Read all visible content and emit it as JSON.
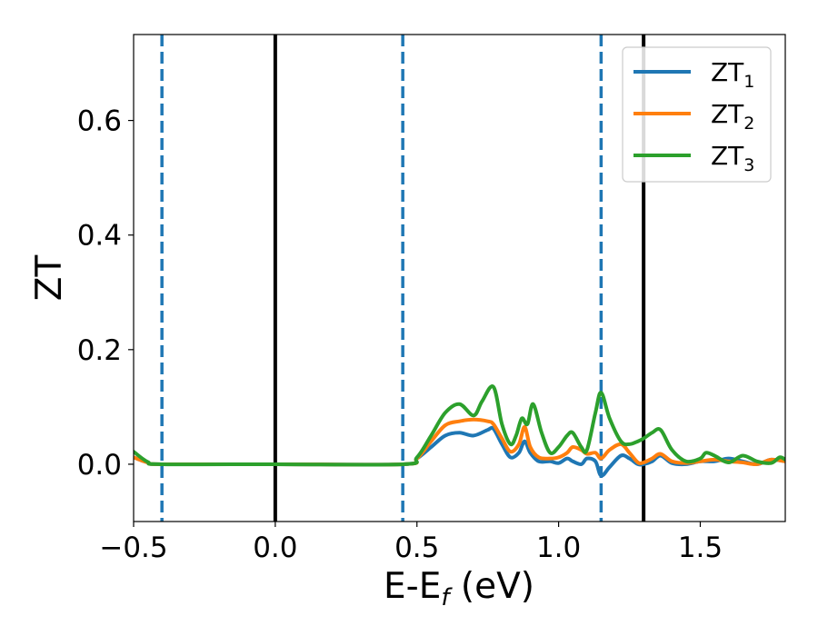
{
  "chart_data": {
    "type": "line",
    "xlabel": "E-E",
    "xlabel_sub": "f",
    "xlabel_unit": " (eV)",
    "ylabel": "ZT",
    "xlim": [
      -0.5,
      1.8
    ],
    "ylim": [
      -0.1,
      0.75
    ],
    "xticks": [
      -0.5,
      0.0,
      0.5,
      1.0,
      1.5
    ],
    "xtick_labels": [
      "−0.5",
      "0.0",
      "0.5",
      "1.0",
      "1.5"
    ],
    "yticks": [
      0.0,
      0.2,
      0.4,
      0.6
    ],
    "ytick_labels": [
      "0.0",
      "0.2",
      "0.4",
      "0.6"
    ],
    "grid": false,
    "legend_position": "top-right",
    "vertical_lines": [
      {
        "x": -0.4,
        "style": "dashed",
        "color": "#1f77b4"
      },
      {
        "x": 0.0,
        "style": "solid",
        "color": "#000000"
      },
      {
        "x": 0.45,
        "style": "dashed",
        "color": "#1f77b4"
      },
      {
        "x": 1.15,
        "style": "dashed",
        "color": "#1f77b4"
      },
      {
        "x": 1.3,
        "style": "solid",
        "color": "#000000"
      }
    ],
    "series": [
      {
        "name": "ZT",
        "name_sub": "1",
        "color": "#1f77b4",
        "x": [
          -0.5,
          -0.45,
          -0.4,
          0.0,
          0.45,
          0.5,
          0.55,
          0.6,
          0.65,
          0.7,
          0.75,
          0.77,
          0.8,
          0.83,
          0.86,
          0.88,
          0.9,
          0.93,
          0.97,
          1.0,
          1.03,
          1.05,
          1.08,
          1.1,
          1.13,
          1.15,
          1.18,
          1.22,
          1.25,
          1.28,
          1.3,
          1.33,
          1.36,
          1.4,
          1.45,
          1.5,
          1.55,
          1.6,
          1.65,
          1.7,
          1.75,
          1.8
        ],
        "y": [
          0.012,
          0.003,
          0.0,
          0.0,
          0.0,
          0.01,
          0.03,
          0.05,
          0.055,
          0.05,
          0.06,
          0.062,
          0.035,
          0.012,
          0.02,
          0.04,
          0.02,
          0.005,
          0.005,
          0.002,
          0.01,
          0.005,
          0.0,
          0.01,
          0.005,
          -0.02,
          -0.005,
          0.015,
          0.01,
          0.0,
          0.0,
          0.005,
          0.015,
          0.002,
          0.0,
          0.005,
          0.005,
          0.01,
          0.005,
          0.0,
          0.008,
          0.005
        ]
      },
      {
        "name": "ZT",
        "name_sub": "2",
        "color": "#ff7f0e",
        "x": [
          -0.5,
          -0.45,
          -0.4,
          0.0,
          0.45,
          0.5,
          0.55,
          0.6,
          0.65,
          0.7,
          0.75,
          0.77,
          0.8,
          0.83,
          0.86,
          0.88,
          0.9,
          0.93,
          0.97,
          1.0,
          1.03,
          1.05,
          1.08,
          1.1,
          1.13,
          1.15,
          1.18,
          1.22,
          1.25,
          1.28,
          1.3,
          1.33,
          1.36,
          1.4,
          1.45,
          1.5,
          1.55,
          1.6,
          1.65,
          1.7,
          1.75,
          1.8
        ],
        "y": [
          0.012,
          0.003,
          0.0,
          0.0,
          0.0,
          0.01,
          0.04,
          0.068,
          0.075,
          0.078,
          0.075,
          0.07,
          0.045,
          0.022,
          0.035,
          0.065,
          0.03,
          0.012,
          0.01,
          0.012,
          0.02,
          0.03,
          0.025,
          0.018,
          0.02,
          0.01,
          0.025,
          0.035,
          0.02,
          0.003,
          0.003,
          0.01,
          0.018,
          0.005,
          0.002,
          0.005,
          0.008,
          0.005,
          0.003,
          0.0,
          0.008,
          0.005
        ]
      },
      {
        "name": "ZT",
        "name_sub": "3",
        "color": "#2ca02c",
        "x": [
          -0.5,
          -0.45,
          -0.4,
          0.0,
          0.45,
          0.5,
          0.55,
          0.6,
          0.65,
          0.7,
          0.73,
          0.77,
          0.8,
          0.83,
          0.85,
          0.87,
          0.89,
          0.91,
          0.94,
          0.97,
          1.0,
          1.03,
          1.05,
          1.08,
          1.1,
          1.13,
          1.15,
          1.18,
          1.22,
          1.25,
          1.28,
          1.3,
          1.33,
          1.36,
          1.4,
          1.45,
          1.5,
          1.52,
          1.55,
          1.6,
          1.65,
          1.7,
          1.75,
          1.78,
          1.8
        ],
        "y": [
          0.022,
          0.004,
          0.0,
          0.0,
          0.0,
          0.012,
          0.05,
          0.09,
          0.105,
          0.085,
          0.11,
          0.135,
          0.07,
          0.035,
          0.05,
          0.08,
          0.07,
          0.105,
          0.055,
          0.02,
          0.03,
          0.05,
          0.055,
          0.03,
          0.025,
          0.09,
          0.125,
          0.08,
          0.04,
          0.035,
          0.04,
          0.045,
          0.055,
          0.06,
          0.025,
          0.005,
          0.01,
          0.02,
          0.015,
          0.003,
          0.015,
          0.005,
          0.002,
          0.012,
          0.008
        ]
      }
    ]
  }
}
